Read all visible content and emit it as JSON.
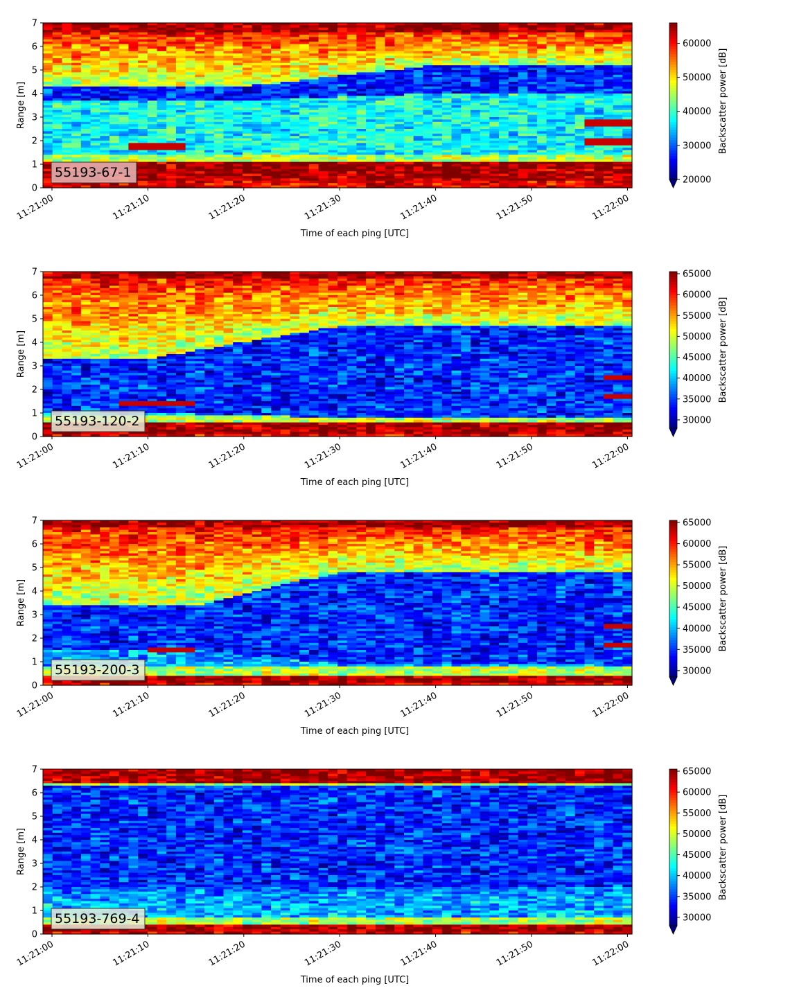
{
  "chart_data": [
    {
      "type": "heatmap",
      "label": "55193-67-1",
      "xlabel": "Time of each ping [UTC]",
      "ylabel": "Range [m]",
      "xticks": [
        "11:21:00",
        "11:21:10",
        "11:21:20",
        "11:21:30",
        "11:21:40",
        "11:21:50",
        "11:22:00"
      ],
      "yticks": [
        0,
        1,
        2,
        3,
        4,
        5,
        6,
        7
      ],
      "ylim": [
        0,
        7
      ],
      "colorbar": {
        "label": "Backscatter power [dB]",
        "min": 20000,
        "max": 66000,
        "ticks": [
          20000,
          30000,
          40000,
          50000,
          60000
        ],
        "colormap": "jet",
        "extend": "min"
      },
      "features": {
        "seabed_band": [
          0.3,
          1.1
        ],
        "top_band_min": 6.6,
        "upper_bright_min": 4.3,
        "mid_blue_start": 3.7,
        "mid_blue_end": 4.3,
        "transition_start_s": 20,
        "transition_end_s": 40,
        "late_mid_blue_start": 4.0,
        "late_mid_blue_end": 5.2
      },
      "targets": [
        {
          "t0": 7.5,
          "t1": 13.5,
          "r0": 1.6,
          "r1": 1.95
        },
        {
          "t0": 55.5,
          "t1": 60.5,
          "r0": 2.6,
          "r1": 2.85
        },
        {
          "t0": 56.0,
          "t1": 60.5,
          "r0": 1.8,
          "r1": 2.05
        }
      ]
    },
    {
      "type": "heatmap",
      "label": "55193-120-2",
      "xlabel": "Time of each ping [UTC]",
      "ylabel": "Range [m]",
      "xticks": [
        "11:21:00",
        "11:21:10",
        "11:21:20",
        "11:21:30",
        "11:21:40",
        "11:21:50",
        "11:22:00"
      ],
      "yticks": [
        0,
        1,
        2,
        3,
        4,
        5,
        6,
        7
      ],
      "ylim": [
        0,
        7
      ],
      "colorbar": {
        "label": "Backscatter power [dB]",
        "min": 28000,
        "max": 65500,
        "ticks": [
          30000,
          35000,
          40000,
          45000,
          50000,
          55000,
          60000,
          65000
        ],
        "colormap": "jet",
        "extend": "min"
      },
      "features": {
        "seabed_band": [
          0.05,
          0.55
        ],
        "top_band_min": 6.7,
        "upper_bright_min": 3.3,
        "mid_blue_start": 1.0,
        "mid_blue_end": 3.3,
        "transition_start_s": 10,
        "transition_end_s": 30,
        "late_mid_blue_start": 0.8,
        "late_mid_blue_end": 4.7
      },
      "targets": [
        {
          "t0": 6.5,
          "t1": 14.5,
          "r0": 1.3,
          "r1": 1.5
        },
        {
          "t0": 57.5,
          "t1": 60.5,
          "r0": 2.4,
          "r1": 2.6
        },
        {
          "t0": 57.5,
          "t1": 60.5,
          "r0": 1.65,
          "r1": 1.8
        }
      ]
    },
    {
      "type": "heatmap",
      "label": "55193-200-3",
      "xlabel": "Time of each ping [UTC]",
      "ylabel": "Range [m]",
      "xticks": [
        "11:21:00",
        "11:21:10",
        "11:21:20",
        "11:21:30",
        "11:21:40",
        "11:21:50",
        "11:22:00"
      ],
      "yticks": [
        0,
        1,
        2,
        3,
        4,
        5,
        6,
        7
      ],
      "ylim": [
        0,
        7
      ],
      "colorbar": {
        "label": "Backscatter power [dB]",
        "min": 28500,
        "max": 65500,
        "ticks": [
          30000,
          35000,
          40000,
          45000,
          50000,
          55000,
          60000,
          65000
        ],
        "colormap": "jet",
        "extend": "min"
      },
      "features": {
        "seabed_band": [
          0.15,
          0.45
        ],
        "top_band_min": 6.7,
        "upper_bright_min": 3.4,
        "mid_blue_start": 1.5,
        "mid_blue_end": 3.4,
        "transition_start_s": 15,
        "transition_end_s": 30,
        "late_mid_blue_start": 0.9,
        "late_mid_blue_end": 4.8
      },
      "targets": [
        {
          "t0": 9.5,
          "t1": 14.5,
          "r0": 1.35,
          "r1": 1.55
        },
        {
          "t0": 57.5,
          "t1": 60.5,
          "r0": 2.35,
          "r1": 2.55
        },
        {
          "t0": 57.5,
          "t1": 60.5,
          "r0": 1.6,
          "r1": 1.8
        }
      ]
    },
    {
      "type": "heatmap",
      "label": "55193-769-4",
      "xlabel": "Time of each ping [UTC]",
      "ylabel": "Range [m]",
      "xticks": [
        "11:21:00",
        "11:21:10",
        "11:21:20",
        "11:21:30",
        "11:21:40",
        "11:21:50",
        "11:22:00"
      ],
      "yticks": [
        0,
        1,
        2,
        3,
        4,
        5,
        6,
        7
      ],
      "ylim": [
        0,
        7
      ],
      "colorbar": {
        "label": "Backscatter power [dB]",
        "min": 28000,
        "max": 65500,
        "ticks": [
          30000,
          35000,
          40000,
          45000,
          50000,
          55000,
          60000,
          65000
        ],
        "colormap": "jet",
        "extend": "min"
      },
      "features": {
        "seabed_band": [
          0.15,
          0.35
        ],
        "top_band_min": 6.45,
        "upper_bright_min": 6.3,
        "mid_blue_start": 1.2,
        "mid_blue_end": 6.3,
        "transition_start_s": 0,
        "transition_end_s": 0,
        "late_mid_blue_start": 1.2,
        "late_mid_blue_end": 6.3
      },
      "targets": []
    }
  ]
}
